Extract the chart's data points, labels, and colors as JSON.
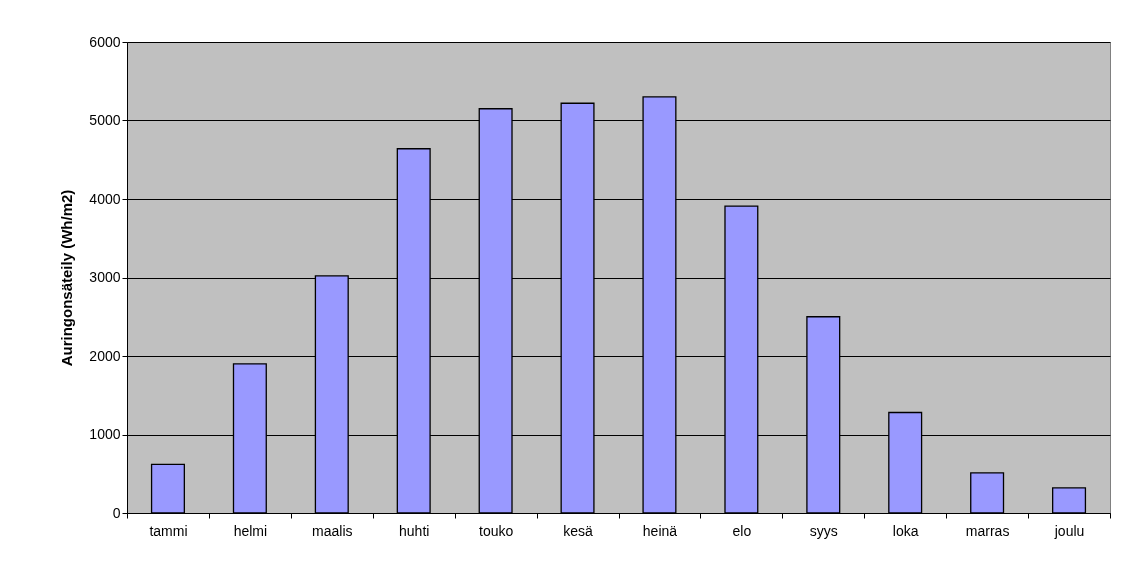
{
  "chart_data": {
    "type": "bar",
    "ylabel": "Auringonsäteily (Wh/m2)",
    "categories": [
      "tammi",
      "helmi",
      "maalis",
      "huhti",
      "touko",
      "kesä",
      "heinä",
      "elo",
      "syys",
      "loka",
      "marras",
      "joulu"
    ],
    "values": [
      620,
      1900,
      3020,
      4640,
      5150,
      5220,
      5300,
      3910,
      2500,
      1280,
      510,
      320
    ],
    "color": "#9999ff",
    "ylim": [
      0,
      6000
    ],
    "yticks": [
      0,
      1000,
      2000,
      3000,
      4000,
      5000,
      6000
    ],
    "grid": "y"
  }
}
